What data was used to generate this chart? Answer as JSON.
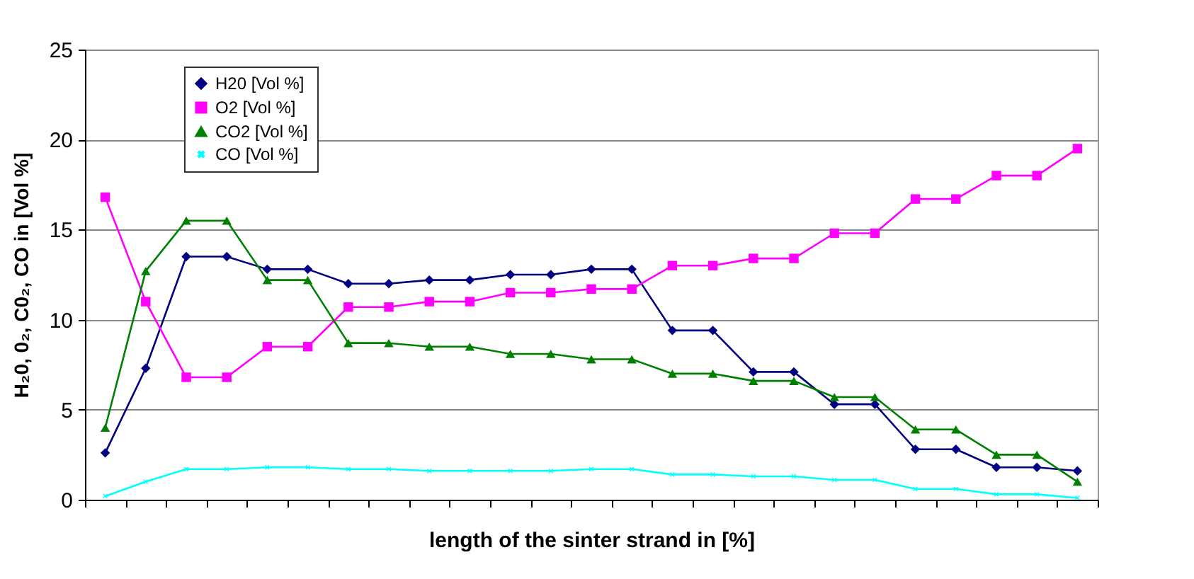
{
  "chart_data": {
    "type": "line",
    "xlabel": "length of the sinter strand in [%]",
    "ylabel": "H₂0, 0₂, C0₂, CO in [Vol %]",
    "categories": [
      null,
      null,
      null,
      null,
      null,
      null,
      null,
      null,
      null,
      null,
      null,
      null,
      null,
      null,
      null,
      null,
      null,
      null,
      null,
      null,
      null,
      null,
      null,
      null,
      null
    ],
    "series": [
      {
        "name": "H20 [Vol %]",
        "color": "#000080",
        "marker": "diamond",
        "values": [
          2.6,
          7.3,
          13.5,
          13.5,
          12.8,
          12.8,
          12.0,
          12.0,
          12.2,
          12.2,
          12.5,
          12.5,
          12.8,
          12.8,
          9.4,
          9.4,
          7.1,
          7.1,
          5.3,
          5.3,
          2.8,
          2.8,
          1.8,
          1.8,
          1.6
        ]
      },
      {
        "name": "O2 [Vol %]",
        "color": "#ff00ff",
        "marker": "square",
        "values": [
          16.8,
          11.0,
          6.8,
          6.8,
          8.5,
          8.5,
          10.7,
          10.7,
          11.0,
          11.0,
          11.5,
          11.5,
          11.7,
          11.7,
          13.0,
          13.0,
          13.4,
          13.4,
          14.8,
          14.8,
          16.7,
          16.7,
          18.0,
          18.0,
          19.5
        ]
      },
      {
        "name": "CO2 [Vol %]",
        "color": "#008000",
        "marker": "triangle",
        "values": [
          4.0,
          12.7,
          15.5,
          15.5,
          12.2,
          12.2,
          8.7,
          8.7,
          8.5,
          8.5,
          8.1,
          8.1,
          7.8,
          7.8,
          7.0,
          7.0,
          6.6,
          6.6,
          5.7,
          5.7,
          3.9,
          3.9,
          2.5,
          2.5,
          1.0
        ]
      },
      {
        "name": "CO [Vol %]",
        "color": "#00ffff",
        "marker": "cross",
        "values": [
          0.2,
          1.0,
          1.7,
          1.7,
          1.8,
          1.8,
          1.7,
          1.7,
          1.6,
          1.6,
          1.6,
          1.6,
          1.7,
          1.7,
          1.4,
          1.4,
          1.3,
          1.3,
          1.1,
          1.1,
          0.6,
          0.6,
          0.3,
          0.3,
          0.1
        ]
      }
    ],
    "ylim": [
      0,
      25
    ],
    "yticks": [
      0,
      5,
      10,
      15,
      20,
      25
    ],
    "grid": "y",
    "legend": "top left",
    "line_style": "solid"
  }
}
